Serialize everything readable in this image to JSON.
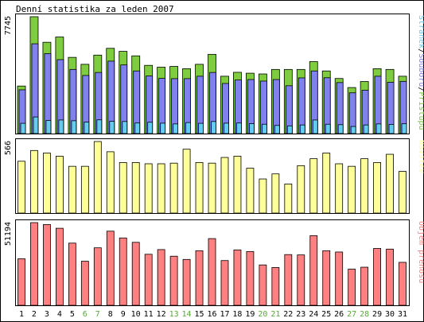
{
  "title": "Denní statistika za leden 2007",
  "chart_data": [
    {
      "type": "bar",
      "panel": "access",
      "ymax_label": "7745",
      "legend": [
        "Stránek",
        "Souborů",
        "Přístupů"
      ],
      "legend_colors": [
        "#66ccee",
        "#8080ee",
        "#80cc40"
      ],
      "categories": [
        "1",
        "2",
        "3",
        "4",
        "5",
        "6",
        "7",
        "8",
        "9",
        "10",
        "11",
        "12",
        "13",
        "14",
        "15",
        "16",
        "17",
        "18",
        "19",
        "20",
        "21",
        "22",
        "23",
        "24",
        "25",
        "26",
        "27",
        "28",
        "29",
        "30",
        "31"
      ],
      "weekend_days": [
        "6",
        "7",
        "13",
        "14",
        "20",
        "21",
        "27",
        "28"
      ],
      "weekend_color": "#55aa33",
      "ylim": [
        0,
        7745
      ],
      "series": [
        {
          "name": "Přístupů",
          "color": "#80cc40",
          "values": [
            3150,
            7745,
            6050,
            6400,
            5050,
            4590,
            5200,
            5650,
            5450,
            5150,
            4520,
            4400,
            4450,
            4300,
            4590,
            5250,
            3800,
            4060,
            4000,
            3950,
            4250,
            4250,
            4250,
            4770,
            4150,
            3650,
            3050,
            3450,
            4300,
            4250,
            3800
          ]
        },
        {
          "name": "Souborů",
          "color": "#8080ee",
          "values": [
            2900,
            5950,
            5300,
            4900,
            4250,
            3850,
            4050,
            4800,
            4550,
            4150,
            3820,
            3660,
            3640,
            3640,
            3800,
            4050,
            3320,
            3550,
            3580,
            3480,
            3580,
            3170,
            3690,
            4150,
            3700,
            3380,
            2700,
            2870,
            3800,
            3400,
            3460
          ]
        },
        {
          "name": "Stránek",
          "color": "#66ccee",
          "values": [
            680,
            1100,
            870,
            900,
            850,
            760,
            910,
            810,
            800,
            700,
            750,
            690,
            640,
            730,
            680,
            800,
            690,
            700,
            660,
            620,
            540,
            510,
            570,
            900,
            620,
            590,
            470,
            570,
            640,
            610,
            650
          ]
        }
      ]
    },
    {
      "type": "bar",
      "panel": "visits",
      "ymax_label": "566",
      "legend": [
        "Návštěv"
      ],
      "legend_colors": [
        "#ffff99"
      ],
      "ylim": [
        0,
        566
      ],
      "series": [
        {
          "name": "Návštěv",
          "color": "#ffff99",
          "values": [
            410,
            495,
            475,
            450,
            370,
            370,
            566,
            485,
            400,
            400,
            390,
            390,
            395,
            505,
            400,
            395,
            440,
            450,
            355,
            270,
            310,
            230,
            375,
            430,
            475,
            390,
            370,
            430,
            400,
            465,
            330
          ]
        }
      ]
    },
    {
      "type": "bar",
      "panel": "volume",
      "ymax_label": "51194",
      "legend": [
        "Objem přenosu"
      ],
      "legend_colors": [
        "#ff8080"
      ],
      "ylim": [
        0,
        51194
      ],
      "series": [
        {
          "name": "Objem přenosu",
          "color": "#ff8080",
          "values": [
            28800,
            51194,
            50000,
            47700,
            38500,
            27300,
            35600,
            45900,
            41700,
            39000,
            31600,
            34500,
            30400,
            28400,
            33800,
            41300,
            27700,
            34300,
            33300,
            25000,
            23400,
            31400,
            31200,
            43100,
            33800,
            33000,
            22400,
            23600,
            35200,
            34800,
            26600
          ]
        }
      ]
    }
  ]
}
